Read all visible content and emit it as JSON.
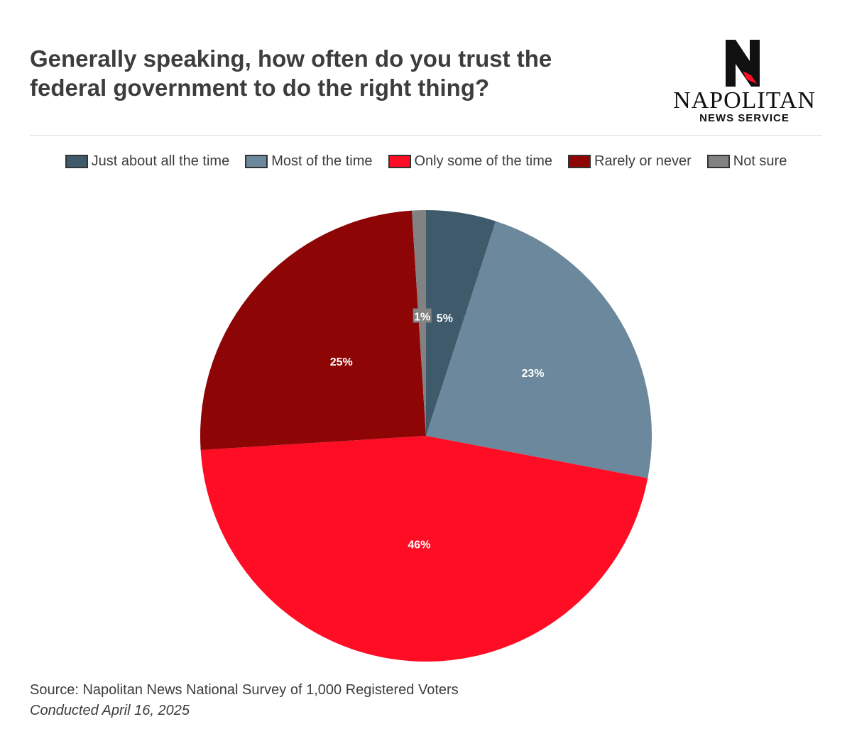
{
  "header": {
    "title": "Generally speaking, how often do you trust the federal government to do the right thing?"
  },
  "logo": {
    "name": "NAPOLITAN",
    "subtitle": "NEWS SERVICE"
  },
  "chart_data": {
    "type": "pie",
    "title": "Generally speaking, how often do you trust the federal government to do the right thing?",
    "legend_position": "top-center",
    "slices": [
      {
        "name": "Just about all the time",
        "value": 5,
        "label": "5%",
        "color": "#3f5a6b"
      },
      {
        "name": "Most of the time",
        "value": 23,
        "label": "23%",
        "color": "#6b889c"
      },
      {
        "name": "Only some of the time",
        "value": 46,
        "label": "46%",
        "color": "#fe0d25"
      },
      {
        "name": "Rarely or never",
        "value": 25,
        "label": "25%",
        "color": "#8e0505"
      },
      {
        "name": "Not sure",
        "value": 1,
        "label": "1%",
        "color": "#828282"
      }
    ]
  },
  "footer": {
    "source": "Source: Napolitan News National Survey of 1,000 Registered Voters",
    "date": "Conducted April 16, 2025"
  }
}
